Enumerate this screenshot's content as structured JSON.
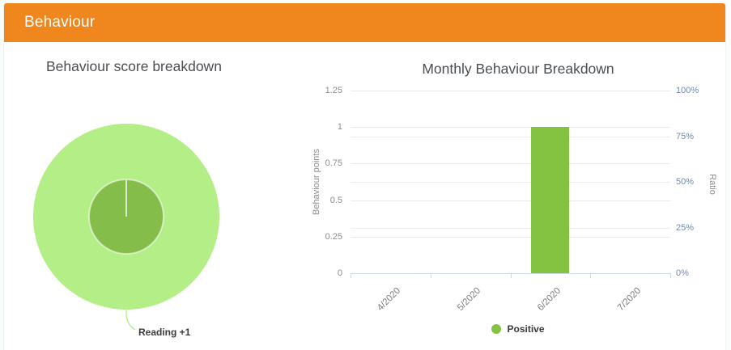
{
  "header": {
    "title": "Behaviour"
  },
  "theme": {
    "header_bg": "#f0861e",
    "positive_green": "#84c341",
    "pie_outer_green": "#b3ee86",
    "pie_inner_green": "#85bd4b",
    "leader_line": "#b7ef8e",
    "slice_divider": "#f4faee"
  },
  "chart_data": [
    {
      "type": "pie",
      "title": "Behaviour score breakdown",
      "slices": [
        {
          "label": "Reading +1",
          "value": 1,
          "percent": 100
        }
      ],
      "style": "nested donut: light green outer ring, darker green inner pie, single 100% slice",
      "legend_position": "none"
    },
    {
      "type": "bar",
      "title": "Monthly Behaviour Breakdown",
      "categories": [
        "4/2020",
        "5/2020",
        "6/2020",
        "7/2020"
      ],
      "series": [
        {
          "name": "Positive",
          "values": [
            0,
            0,
            1,
            0
          ],
          "color": "#84c341"
        }
      ],
      "ylabel_left": "Behaviour points",
      "ylabel_right": "Ratio",
      "ylim_left": [
        0,
        1.25
      ],
      "ylim_right_percent": [
        0,
        100
      ],
      "y_left_ticks": [
        "1.25",
        "1",
        "0.75",
        "0.5",
        "0.25",
        "0"
      ],
      "y_right_ticks": [
        "100%",
        "75%",
        "50%",
        "25%",
        "0%"
      ],
      "grid": true,
      "legend_position": "bottom"
    }
  ]
}
